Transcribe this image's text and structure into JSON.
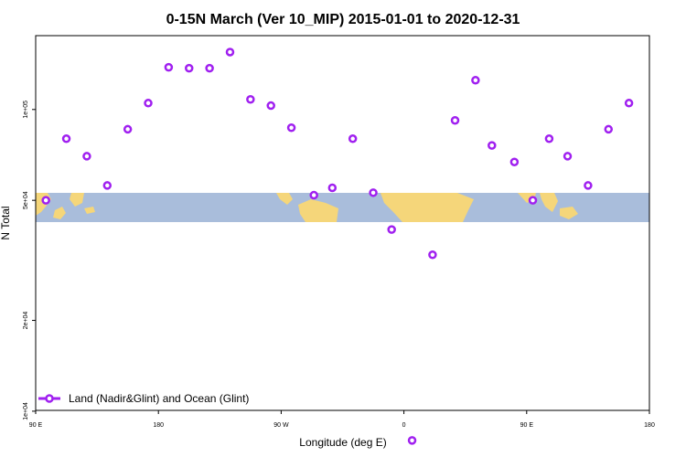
{
  "chart_data": {
    "type": "scatter",
    "title": "0-15N March (Ver 10_MIP)   2015-01-01 to 2020-12-31",
    "xlabel": "Longitude (deg E)",
    "ylabel": "N Total",
    "y_scale": "log",
    "xlim": [
      90,
      390
    ],
    "x_ticks": [
      {
        "value": 90,
        "label": "90 E"
      },
      {
        "value": 150,
        "label": "180"
      },
      {
        "value": 210,
        "label": "90 W"
      },
      {
        "value": 270,
        "label": "0"
      },
      {
        "value": 330,
        "label": "90 E"
      },
      {
        "value": 390,
        "label": "180"
      }
    ],
    "y_ticks": [
      {
        "value": 10000,
        "label": "1e+04"
      },
      {
        "value": 20000,
        "label": "2e+04"
      },
      {
        "value": 50000,
        "label": "5e+04"
      },
      {
        "value": 100000,
        "label": "1e+05"
      }
    ],
    "legend_position": "bottom-left",
    "series": [
      {
        "name": "Land (Nadir&Glint) and Ocean (Glint)",
        "color": "#a020f0",
        "x": [
          95,
          105,
          115,
          125,
          135,
          145,
          155,
          165,
          175,
          185,
          195,
          205,
          215,
          226,
          235,
          245,
          255,
          264,
          274,
          284,
          295,
          305,
          313,
          324,
          333,
          341,
          350,
          360,
          370,
          380
        ],
        "y": [
          50000,
          80000,
          70000,
          56000,
          86000,
          105000,
          138000,
          137000,
          137000,
          155000,
          108000,
          103000,
          87000,
          52000,
          55000,
          80000,
          53000,
          40000,
          8000,
          33000,
          92000,
          125000,
          76000,
          67000,
          50000,
          80000,
          70000,
          56000,
          86000,
          105000
        ]
      }
    ]
  }
}
